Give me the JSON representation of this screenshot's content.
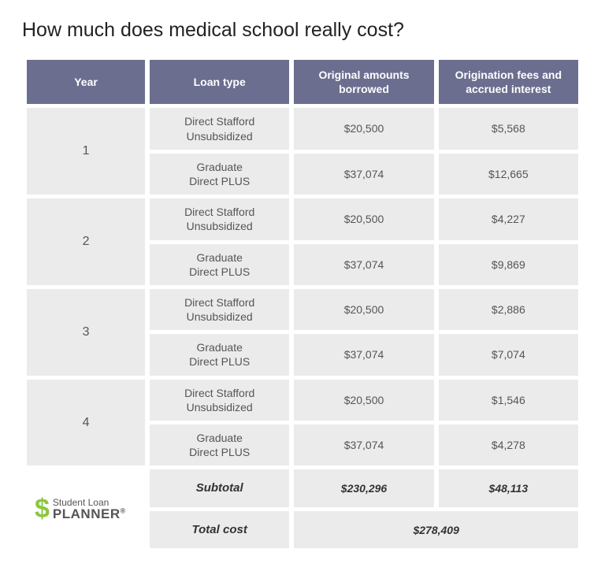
{
  "title": "How much does medical school really cost?",
  "columns": {
    "year": "Year",
    "loan_type": "Loan type",
    "original": "Original amounts borrowed",
    "fees": "Origination fees and accrued interest"
  },
  "rows": [
    {
      "year": "1",
      "loans": [
        {
          "type_line1": "Direct Stafford",
          "type_line2": "Unsubsidized",
          "original": "$20,500",
          "fees": "$5,568"
        },
        {
          "type_line1": "Graduate",
          "type_line2": "Direct PLUS",
          "original": "$37,074",
          "fees": "$12,665"
        }
      ]
    },
    {
      "year": "2",
      "loans": [
        {
          "type_line1": "Direct Stafford",
          "type_line2": "Unsubsidized",
          "original": "$20,500",
          "fees": "$4,227"
        },
        {
          "type_line1": "Graduate",
          "type_line2": "Direct PLUS",
          "original": "$37,074",
          "fees": "$9,869"
        }
      ]
    },
    {
      "year": "3",
      "loans": [
        {
          "type_line1": "Direct Stafford",
          "type_line2": "Unsubsidized",
          "original": "$20,500",
          "fees": "$2,886"
        },
        {
          "type_line1": "Graduate",
          "type_line2": "Direct PLUS",
          "original": "$37,074",
          "fees": "$7,074"
        }
      ]
    },
    {
      "year": "4",
      "loans": [
        {
          "type_line1": "Direct Stafford",
          "type_line2": "Unsubsidized",
          "original": "$20,500",
          "fees": "$1,546"
        },
        {
          "type_line1": "Graduate",
          "type_line2": "Direct PLUS",
          "original": "$37,074",
          "fees": "$4,278"
        }
      ]
    }
  ],
  "subtotal": {
    "label": "Subtotal",
    "original": "$230,296",
    "fees": "$48,113"
  },
  "total": {
    "label": "Total cost",
    "value": "$278,409"
  },
  "logo": {
    "top": "Student Loan",
    "bottom": "PLANNER",
    "symbol": "$",
    "mark": "®"
  },
  "styling": {
    "header_bg": "#6b6e8f",
    "header_text": "#ffffff",
    "cell_bg": "#ebebeb",
    "cell_text": "#555555",
    "body_bg": "#ffffff",
    "title_color": "#222222",
    "logo_green": "#8cc63f",
    "title_fontsize": 25,
    "header_fontsize": 14,
    "cell_fontsize": 14,
    "year_fontsize": 16,
    "border_spacing_x": 6,
    "border_spacing_y": 5
  }
}
